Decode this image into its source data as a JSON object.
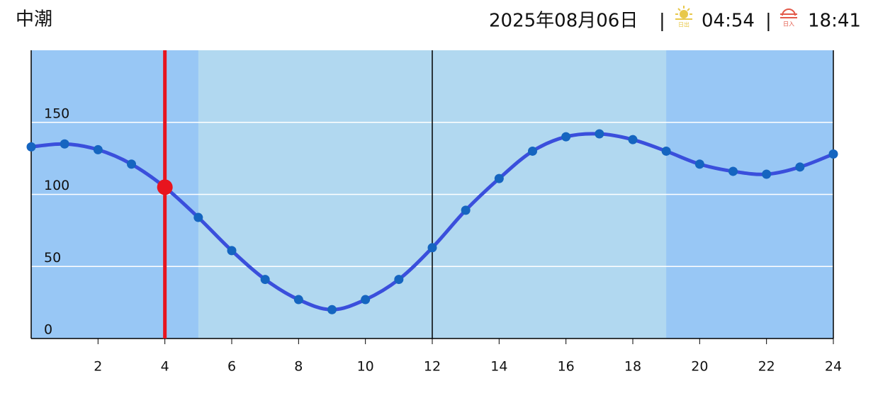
{
  "header": {
    "tide_name": "中潮",
    "date": "2025年08月06日",
    "separator": "|",
    "sunrise": "04:54",
    "sunset": "18:41"
  },
  "chart_data": {
    "type": "line",
    "x": [
      0,
      1,
      2,
      3,
      4,
      5,
      6,
      7,
      8,
      9,
      10,
      11,
      12,
      13,
      14,
      15,
      16,
      17,
      18,
      19,
      20,
      21,
      22,
      23,
      24
    ],
    "series": [
      {
        "color": "#3a4fdc",
        "marker_color": "#1565c0",
        "values": [
          133,
          135,
          131,
          121,
          105,
          84,
          61,
          41,
          27,
          20,
          27,
          41,
          63,
          89,
          111,
          130,
          140,
          142,
          138,
          130,
          121,
          116,
          114,
          119,
          128
        ]
      }
    ],
    "current": {
      "x": 4,
      "value": 105,
      "color": "#e8141e"
    },
    "daylight": [
      5,
      19
    ],
    "night_color": "#98c7f5",
    "day_color": "#b1d8f0",
    "xlim": [
      0,
      24
    ],
    "xticks": [
      2,
      4,
      6,
      8,
      10,
      12,
      14,
      16,
      18,
      20,
      22,
      24
    ],
    "major_x": [
      0,
      12,
      24
    ],
    "ylim": [
      0,
      200
    ],
    "yticks": [
      0,
      50,
      100,
      150
    ],
    "grid": true
  }
}
